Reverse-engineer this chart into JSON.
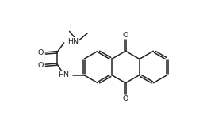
{
  "bg": "#ffffff",
  "lc": "#222222",
  "lw": 1.1,
  "fs": 6.8,
  "fig_w": 2.61,
  "fig_h": 1.69,
  "dpi": 100,
  "xlim": [
    0,
    10.5
  ],
  "ylim": [
    0,
    6.8
  ]
}
